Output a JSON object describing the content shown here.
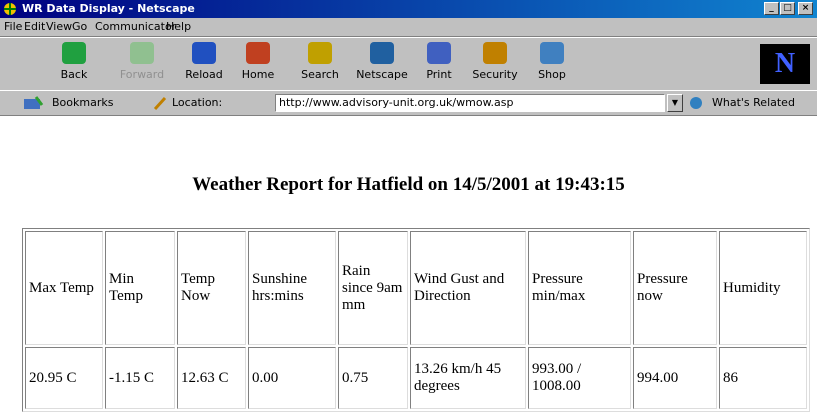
{
  "window": {
    "title": "WR Data Display - Netscape"
  },
  "menu": [
    "File",
    "Edit",
    "View",
    "Go",
    "Communicator",
    "Help"
  ],
  "toolbar": [
    "Back",
    "Forward",
    "Reload",
    "Home",
    "Search",
    "Netscape",
    "Print",
    "Security",
    "Shop"
  ],
  "location_bar": {
    "bookmarks": "Bookmarks",
    "location_label": "Location:",
    "url": "http://www.advisory-unit.org.uk/wmow.asp",
    "related": "What's Related"
  },
  "page": {
    "heading": "Weather Report for Hatfield on 14/5/2001 at 19:43:15",
    "table": {
      "header": [
        "Max Temp",
        "Min Temp",
        "Temp Now",
        "Sunshine hrs:mins",
        "Rain since 9am mm",
        "Wind Gust and Direction",
        "Pressure min/max",
        "Pressure now",
        "Humidity"
      ],
      "rows": [
        [
          "20.95 C",
          "-1.15 C",
          "12.63 C",
          "0.00",
          "0.75",
          "13.26 km/h 45 degrees",
          "993.00 / 1008.00",
          "994.00",
          "86"
        ]
      ]
    }
  }
}
